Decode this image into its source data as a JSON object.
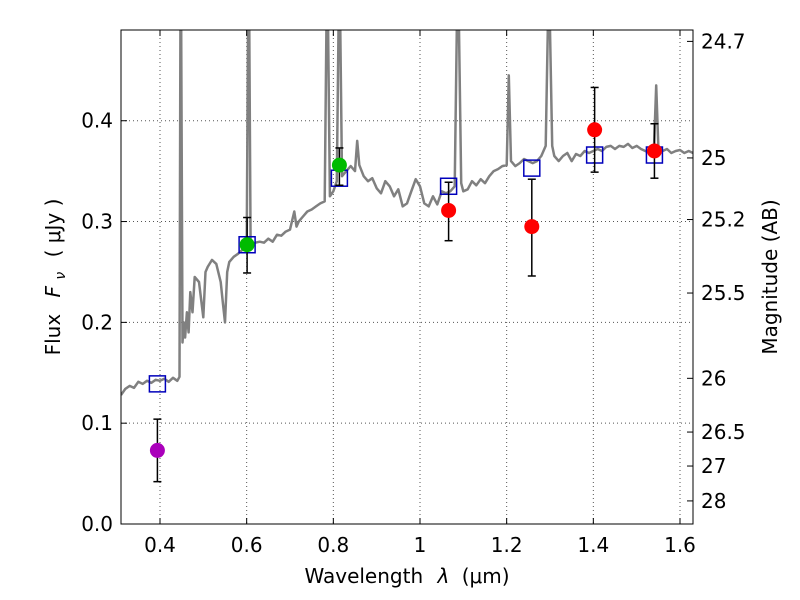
{
  "chart_data": {
    "type": "scatter",
    "xlabel": "Wavelength",
    "xlabel_symbol": "λ",
    "xlabel_unit": "(μm)",
    "ylabel": "Flux",
    "ylabel_symbol": "F",
    "ylabel_subscript": "ν",
    "ylabel_unit": "( μJy )",
    "y2label": "Magnitude (AB)",
    "xlim": [
      0.31,
      1.63
    ],
    "ylim": [
      0.0,
      0.49
    ],
    "grid": true,
    "x_ticks": [
      0.4,
      0.6,
      0.8,
      1.0,
      1.2,
      1.4,
      1.6
    ],
    "x_tick_labels": [
      "0.4",
      "0.6",
      "0.8",
      "1",
      "1.2",
      "1.4",
      "1.6"
    ],
    "y_ticks": [
      0.0,
      0.1,
      0.2,
      0.3,
      0.4
    ],
    "y_tick_labels": [
      "0.0",
      "0.1",
      "0.2",
      "0.3",
      "0.4"
    ],
    "y2_ticks": [
      {
        "label": "24.7",
        "flux": 0.4787
      },
      {
        "label": "25",
        "flux": 0.3631
      },
      {
        "label": "25.2",
        "flux": 0.302
      },
      {
        "label": "25.5",
        "flux": 0.2291
      },
      {
        "label": "26",
        "flux": 0.1445
      },
      {
        "label": "26.5",
        "flux": 0.0912
      },
      {
        "label": "27",
        "flux": 0.0575
      },
      {
        "label": "28",
        "flux": 0.0229
      }
    ],
    "colors": {
      "template": "#808080",
      "model_box": "#0000bb",
      "blue_band": "#aa00bb",
      "optical": "#00bb00",
      "infrared": "#ff0000",
      "errorbar": "#000000",
      "grid": "#555555"
    },
    "series": [
      {
        "name": "template spectrum",
        "kind": "line",
        "points": [
          [
            0.31,
            0.128
          ],
          [
            0.32,
            0.134
          ],
          [
            0.33,
            0.137
          ],
          [
            0.34,
            0.135
          ],
          [
            0.35,
            0.141
          ],
          [
            0.36,
            0.139
          ],
          [
            0.37,
            0.142
          ],
          [
            0.38,
            0.14
          ],
          [
            0.39,
            0.143
          ],
          [
            0.4,
            0.142
          ],
          [
            0.41,
            0.144
          ],
          [
            0.42,
            0.141
          ],
          [
            0.43,
            0.145
          ],
          [
            0.44,
            0.142
          ],
          [
            0.445,
            0.146
          ],
          [
            0.447,
            0.49
          ],
          [
            0.449,
            0.49
          ],
          [
            0.452,
            0.18
          ],
          [
            0.455,
            0.2
          ],
          [
            0.458,
            0.185
          ],
          [
            0.462,
            0.21
          ],
          [
            0.466,
            0.19
          ],
          [
            0.47,
            0.23
          ],
          [
            0.475,
            0.21
          ],
          [
            0.48,
            0.245
          ],
          [
            0.49,
            0.24
          ],
          [
            0.5,
            0.205
          ],
          [
            0.505,
            0.25
          ],
          [
            0.51,
            0.255
          ],
          [
            0.52,
            0.262
          ],
          [
            0.53,
            0.258
          ],
          [
            0.54,
            0.24
          ],
          [
            0.545,
            0.22
          ],
          [
            0.55,
            0.2
          ],
          [
            0.555,
            0.25
          ],
          [
            0.56,
            0.26
          ],
          [
            0.57,
            0.265
          ],
          [
            0.58,
            0.268
          ],
          [
            0.59,
            0.272
          ],
          [
            0.6,
            0.275
          ],
          [
            0.603,
            0.49
          ],
          [
            0.606,
            0.49
          ],
          [
            0.609,
            0.276
          ],
          [
            0.62,
            0.279
          ],
          [
            0.63,
            0.28
          ],
          [
            0.64,
            0.279
          ],
          [
            0.65,
            0.283
          ],
          [
            0.66,
            0.28
          ],
          [
            0.67,
            0.287
          ],
          [
            0.68,
            0.286
          ],
          [
            0.69,
            0.29
          ],
          [
            0.7,
            0.292
          ],
          [
            0.71,
            0.31
          ],
          [
            0.715,
            0.295
          ],
          [
            0.72,
            0.3
          ],
          [
            0.73,
            0.305
          ],
          [
            0.74,
            0.31
          ],
          [
            0.75,
            0.312
          ],
          [
            0.76,
            0.315
          ],
          [
            0.77,
            0.318
          ],
          [
            0.78,
            0.32
          ],
          [
            0.784,
            0.49
          ],
          [
            0.788,
            0.49
          ],
          [
            0.792,
            0.325
          ],
          [
            0.8,
            0.33
          ],
          [
            0.808,
            0.34
          ],
          [
            0.812,
            0.49
          ],
          [
            0.816,
            0.49
          ],
          [
            0.82,
            0.345
          ],
          [
            0.83,
            0.35
          ],
          [
            0.84,
            0.355
          ],
          [
            0.85,
            0.35
          ],
          [
            0.855,
            0.38
          ],
          [
            0.86,
            0.356
          ],
          [
            0.87,
            0.345
          ],
          [
            0.88,
            0.34
          ],
          [
            0.89,
            0.343
          ],
          [
            0.9,
            0.333
          ],
          [
            0.91,
            0.328
          ],
          [
            0.92,
            0.34
          ],
          [
            0.93,
            0.335
          ],
          [
            0.94,
            0.325
          ],
          [
            0.95,
            0.332
          ],
          [
            0.96,
            0.315
          ],
          [
            0.97,
            0.318
          ],
          [
            0.98,
            0.33
          ],
          [
            0.99,
            0.342
          ],
          [
            1.0,
            0.335
          ],
          [
            1.01,
            0.318
          ],
          [
            1.02,
            0.315
          ],
          [
            1.03,
            0.325
          ],
          [
            1.04,
            0.317
          ],
          [
            1.05,
            0.33
          ],
          [
            1.06,
            0.328
          ],
          [
            1.07,
            0.33
          ],
          [
            1.08,
            0.335
          ],
          [
            1.085,
            0.49
          ],
          [
            1.09,
            0.49
          ],
          [
            1.095,
            0.338
          ],
          [
            1.1,
            0.33
          ],
          [
            1.11,
            0.332
          ],
          [
            1.12,
            0.34
          ],
          [
            1.13,
            0.336
          ],
          [
            1.14,
            0.342
          ],
          [
            1.15,
            0.338
          ],
          [
            1.16,
            0.345
          ],
          [
            1.17,
            0.35
          ],
          [
            1.18,
            0.352
          ],
          [
            1.19,
            0.355
          ],
          [
            1.2,
            0.356
          ],
          [
            1.205,
            0.445
          ],
          [
            1.21,
            0.36
          ],
          [
            1.22,
            0.355
          ],
          [
            1.23,
            0.358
          ],
          [
            1.24,
            0.362
          ],
          [
            1.25,
            0.36
          ],
          [
            1.26,
            0.358
          ],
          [
            1.27,
            0.36
          ],
          [
            1.28,
            0.365
          ],
          [
            1.29,
            0.375
          ],
          [
            1.295,
            0.49
          ],
          [
            1.3,
            0.49
          ],
          [
            1.305,
            0.375
          ],
          [
            1.31,
            0.365
          ],
          [
            1.32,
            0.36
          ],
          [
            1.33,
            0.365
          ],
          [
            1.34,
            0.368
          ],
          [
            1.35,
            0.36
          ],
          [
            1.36,
            0.367
          ],
          [
            1.37,
            0.365
          ],
          [
            1.38,
            0.37
          ],
          [
            1.39,
            0.368
          ],
          [
            1.4,
            0.37
          ],
          [
            1.41,
            0.372
          ],
          [
            1.42,
            0.37
          ],
          [
            1.43,
            0.374
          ],
          [
            1.44,
            0.375
          ],
          [
            1.45,
            0.372
          ],
          [
            1.46,
            0.375
          ],
          [
            1.47,
            0.374
          ],
          [
            1.48,
            0.377
          ],
          [
            1.49,
            0.373
          ],
          [
            1.5,
            0.375
          ],
          [
            1.51,
            0.372
          ],
          [
            1.52,
            0.37
          ],
          [
            1.53,
            0.368
          ],
          [
            1.54,
            0.373
          ],
          [
            1.545,
            0.435
          ],
          [
            1.55,
            0.375
          ],
          [
            1.56,
            0.37
          ],
          [
            1.57,
            0.372
          ],
          [
            1.58,
            0.368
          ],
          [
            1.59,
            0.37
          ],
          [
            1.6,
            0.371
          ],
          [
            1.61,
            0.368
          ],
          [
            1.62,
            0.37
          ],
          [
            1.63,
            0.368
          ]
        ]
      },
      {
        "name": "model photometry",
        "kind": "open-square",
        "points": [
          [
            0.394,
            0.139
          ],
          [
            0.601,
            0.277
          ],
          [
            0.814,
            0.343
          ],
          [
            1.066,
            0.335
          ],
          [
            1.258,
            0.353
          ],
          [
            1.403,
            0.366
          ],
          [
            1.541,
            0.366
          ]
        ]
      },
      {
        "name": "blue band flux",
        "kind": "filled-circle",
        "color_key": "blue_band",
        "points": [
          {
            "x": 0.394,
            "y": 0.073,
            "lo": 0.042,
            "hi": 0.104
          }
        ]
      },
      {
        "name": "optical flux",
        "kind": "filled-circle",
        "color_key": "optical",
        "points": [
          {
            "x": 0.601,
            "y": 0.277,
            "lo": 0.249,
            "hi": 0.304
          },
          {
            "x": 0.814,
            "y": 0.356,
            "lo": 0.336,
            "hi": 0.373
          }
        ]
      },
      {
        "name": "infrared flux",
        "kind": "filled-circle",
        "color_key": "infrared",
        "points": [
          {
            "x": 1.066,
            "y": 0.311,
            "lo": 0.281,
            "hi": 0.339
          },
          {
            "x": 1.258,
            "y": 0.295,
            "lo": 0.246,
            "hi": 0.342
          },
          {
            "x": 1.403,
            "y": 0.391,
            "lo": 0.349,
            "hi": 0.433
          },
          {
            "x": 1.541,
            "y": 0.37,
            "lo": 0.343,
            "hi": 0.397
          }
        ]
      }
    ]
  }
}
